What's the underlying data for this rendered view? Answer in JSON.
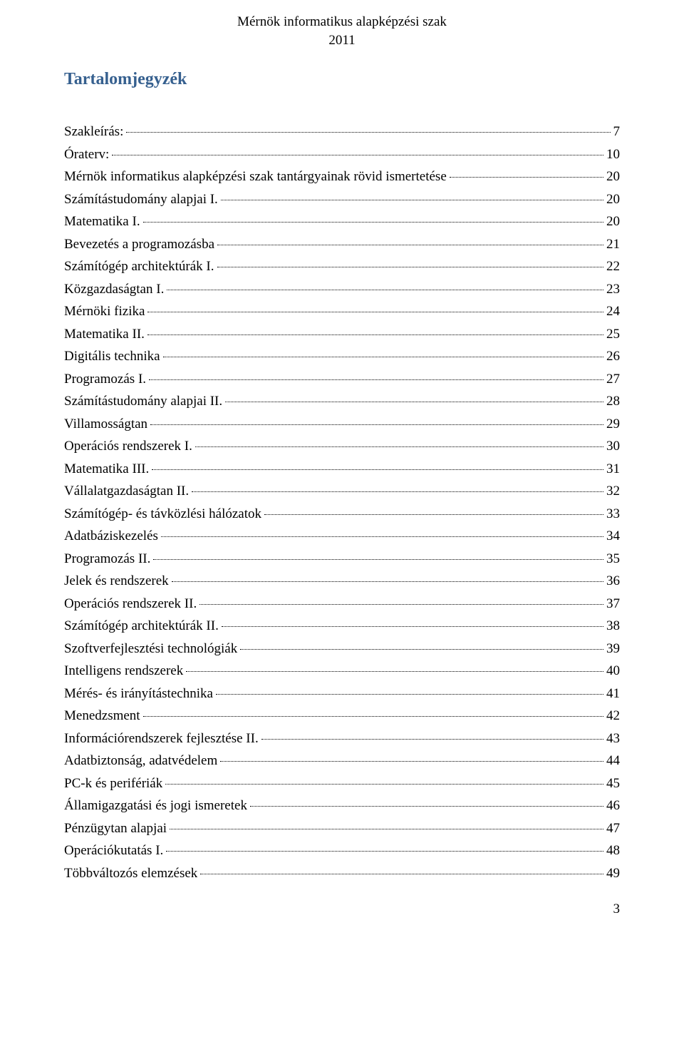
{
  "header": {
    "title": "Mérnök informatikus alapképzési szak",
    "year": "2011"
  },
  "toc_title": "Tartalomjegyzék",
  "entries": [
    {
      "label": "Szakleírás:",
      "page": "7"
    },
    {
      "label": "Óraterv:",
      "page": "10"
    },
    {
      "label": "Mérnök informatikus alapképzési szak tantárgyainak rövid  ismertetése",
      "page": "20"
    },
    {
      "label": "Számítástudomány alapjai I.",
      "page": "20"
    },
    {
      "label": "Matematika I.",
      "page": "20"
    },
    {
      "label": "Bevezetés a programozásba",
      "page": "21"
    },
    {
      "label": "Számítógép architektúrák I.",
      "page": "22"
    },
    {
      "label": "Közgazdaságtan I.",
      "page": "23"
    },
    {
      "label": "Mérnöki fizika",
      "page": "24"
    },
    {
      "label": "Matematika II.",
      "page": "25"
    },
    {
      "label": "Digitális technika",
      "page": "26"
    },
    {
      "label": "Programozás I.",
      "page": "27"
    },
    {
      "label": "Számítástudomány alapjai II.",
      "page": "28"
    },
    {
      "label": "Villamosságtan",
      "page": "29"
    },
    {
      "label": "Operációs rendszerek I.",
      "page": "30"
    },
    {
      "label": "Matematika III.",
      "page": "31"
    },
    {
      "label": "Vállalatgazdaságtan II.",
      "page": "32"
    },
    {
      "label": "Számítógép- és távközlési hálózatok",
      "page": "33"
    },
    {
      "label": "Adatbáziskezelés",
      "page": "34"
    },
    {
      "label": "Programozás II.",
      "page": "35"
    },
    {
      "label": "Jelek és rendszerek",
      "page": "36"
    },
    {
      "label": "Operációs rendszerek II.",
      "page": "37"
    },
    {
      "label": "Számítógép architektúrák II.",
      "page": "38"
    },
    {
      "label": "Szoftverfejlesztési technológiák",
      "page": "39"
    },
    {
      "label": "Intelligens rendszerek",
      "page": "40"
    },
    {
      "label": "Mérés- és irányítástechnika",
      "page": "41"
    },
    {
      "label": "Menedzsment",
      "page": "42"
    },
    {
      "label": "Információrendszerek fejlesztése II.",
      "page": "43"
    },
    {
      "label": "Adatbiztonság, adatvédelem",
      "page": "44"
    },
    {
      "label": "PC-k és perifériák",
      "page": "45"
    },
    {
      "label": "Államigazgatási és jogi ismeretek",
      "page": "46"
    },
    {
      "label": "Pénzügytan alapjai",
      "page": "47"
    },
    {
      "label": "Operációkutatás I.",
      "page": "48"
    },
    {
      "label": "Többváltozós elemzések",
      "page": "49"
    }
  ],
  "page_number": "3",
  "colors": {
    "title_color": "#36608f",
    "text_color": "#000000",
    "background": "#ffffff"
  },
  "typography": {
    "body_font": "Times New Roman",
    "body_size_pt": 14,
    "title_size_pt": 18,
    "title_weight": "bold"
  }
}
